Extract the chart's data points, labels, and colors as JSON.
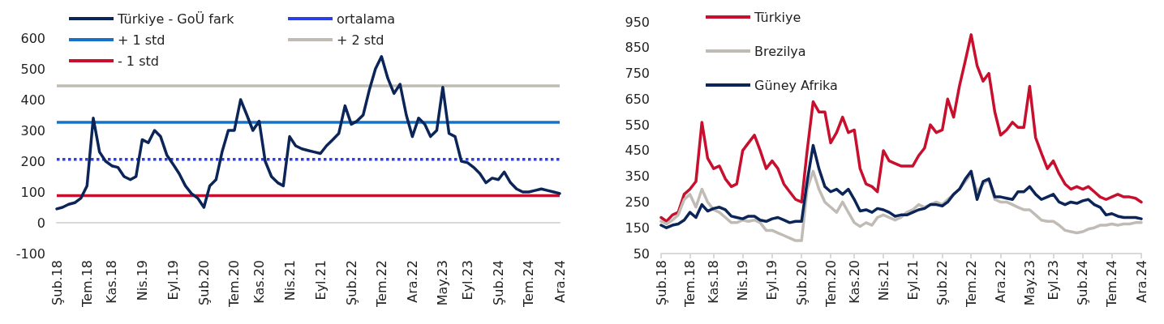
{
  "chart_data": [
    {
      "type": "line",
      "legend": "top",
      "grid": false,
      "ylim": [
        -100,
        600
      ],
      "yticks": [
        -100,
        0,
        100,
        200,
        300,
        400,
        500,
        600
      ],
      "xlim": [
        "2018-02",
        "2024-12"
      ],
      "xticks": [
        {
          "value": "2018-02",
          "label": "Şub.18"
        },
        {
          "value": "2018-07",
          "label": "Tem.18"
        },
        {
          "value": "2018-11",
          "label": "Kas.18"
        },
        {
          "value": "2019-04",
          "label": "Nis.19"
        },
        {
          "value": "2019-09",
          "label": "Eyl.19"
        },
        {
          "value": "2020-02",
          "label": "Şub.20"
        },
        {
          "value": "2020-07",
          "label": "Tem.20"
        },
        {
          "value": "2020-11",
          "label": "Kas.20"
        },
        {
          "value": "2021-04",
          "label": "Nis.21"
        },
        {
          "value": "2021-09",
          "label": "Eyl.21"
        },
        {
          "value": "2022-02",
          "label": "Şub.22"
        },
        {
          "value": "2022-07",
          "label": "Tem.22"
        },
        {
          "value": "2022-12",
          "label": "Ara.22"
        },
        {
          "value": "2023-05",
          "label": "May.23"
        },
        {
          "value": "2023-09",
          "label": "Eyl.23"
        },
        {
          "value": "2024-02",
          "label": "Şub.24"
        },
        {
          "value": "2024-07",
          "label": "Tem.24"
        },
        {
          "value": "2024-12",
          "label": "Ara.24"
        }
      ],
      "x": [
        "2018-02",
        "2018-03",
        "2018-04",
        "2018-05",
        "2018-06",
        "2018-07",
        "2018-08",
        "2018-09",
        "2018-10",
        "2018-11",
        "2018-12",
        "2019-01",
        "2019-02",
        "2019-03",
        "2019-04",
        "2019-05",
        "2019-06",
        "2019-07",
        "2019-08",
        "2019-09",
        "2019-10",
        "2019-11",
        "2019-12",
        "2020-01",
        "2020-02",
        "2020-03",
        "2020-04",
        "2020-05",
        "2020-06",
        "2020-07",
        "2020-08",
        "2020-09",
        "2020-10",
        "2020-11",
        "2020-12",
        "2021-01",
        "2021-02",
        "2021-03",
        "2021-04",
        "2021-05",
        "2021-06",
        "2021-07",
        "2021-08",
        "2021-09",
        "2021-10",
        "2021-11",
        "2021-12",
        "2022-01",
        "2022-02",
        "2022-03",
        "2022-04",
        "2022-05",
        "2022-06",
        "2022-07",
        "2022-08",
        "2022-09",
        "2022-10",
        "2022-11",
        "2022-12",
        "2023-01",
        "2023-02",
        "2023-03",
        "2023-04",
        "2023-05",
        "2023-06",
        "2023-07",
        "2023-08",
        "2023-09",
        "2023-10",
        "2023-11",
        "2023-12",
        "2024-01",
        "2024-02",
        "2024-03",
        "2024-04",
        "2024-05",
        "2024-06",
        "2024-07",
        "2024-08",
        "2024-09",
        "2024-10",
        "2024-11",
        "2024-12"
      ],
      "series": [
        {
          "name": "Türkiye - GoÜ fark",
          "color": "#0b2559",
          "values": [
            45,
            50,
            60,
            65,
            80,
            120,
            340,
            230,
            200,
            185,
            180,
            150,
            140,
            150,
            270,
            260,
            300,
            280,
            220,
            190,
            160,
            120,
            95,
            80,
            50,
            120,
            140,
            230,
            300,
            300,
            400,
            350,
            300,
            330,
            200,
            150,
            130,
            120,
            280,
            250,
            240,
            235,
            230,
            225,
            250,
            270,
            290,
            380,
            320,
            330,
            350,
            430,
            500,
            540,
            470,
            420,
            450,
            350,
            280,
            340,
            320,
            280,
            300,
            440,
            290,
            280,
            200,
            195,
            180,
            160,
            130,
            145,
            140,
            165,
            130,
            110,
            100,
            100,
            105,
            110,
            105,
            100,
            95
          ]
        }
      ],
      "ref_lines": [
        {
          "axis": "y",
          "value": 206,
          "label": "ortalama",
          "color": "#2c3ee6",
          "line_style": "dotted"
        },
        {
          "axis": "y",
          "value": 326,
          "label": "+ 1 std",
          "color": "#1672c8",
          "line_style": "solid"
        },
        {
          "axis": "y",
          "value": 445,
          "label": "+ 2 std",
          "color": "#c0bcb5",
          "line_style": "solid"
        },
        {
          "axis": "y",
          "value": 88,
          "label": "- 1 std",
          "color": "#c8102e",
          "line_style": "solid"
        }
      ]
    },
    {
      "type": "line",
      "legend": "top left",
      "grid": false,
      "ylim": [
        50,
        950
      ],
      "yticks": [
        50,
        150,
        250,
        350,
        450,
        550,
        650,
        750,
        850,
        950
      ],
      "xlim": [
        "2018-02",
        "2024-12"
      ],
      "xticks": [
        {
          "value": "2018-02",
          "label": "Şub.18"
        },
        {
          "value": "2018-07",
          "label": "Tem.18"
        },
        {
          "value": "2018-11",
          "label": "Kas.18"
        },
        {
          "value": "2019-04",
          "label": "Nis.19"
        },
        {
          "value": "2019-09",
          "label": "Eyl.19"
        },
        {
          "value": "2020-02",
          "label": "Şub.20"
        },
        {
          "value": "2020-07",
          "label": "Tem.20"
        },
        {
          "value": "2020-11",
          "label": "Kas.20"
        },
        {
          "value": "2021-04",
          "label": "Nis.21"
        },
        {
          "value": "2021-09",
          "label": "Eyl.21"
        },
        {
          "value": "2022-02",
          "label": "Şub.22"
        },
        {
          "value": "2022-07",
          "label": "Tem.22"
        },
        {
          "value": "2022-12",
          "label": "Ara.22"
        },
        {
          "value": "2023-05",
          "label": "May.23"
        },
        {
          "value": "2023-09",
          "label": "Eyl.23"
        },
        {
          "value": "2024-02",
          "label": "Şub.24"
        },
        {
          "value": "2024-07",
          "label": "Tem.24"
        },
        {
          "value": "2024-12",
          "label": "Ara.24"
        }
      ],
      "x": [
        "2018-02",
        "2018-03",
        "2018-04",
        "2018-05",
        "2018-06",
        "2018-07",
        "2018-08",
        "2018-09",
        "2018-10",
        "2018-11",
        "2018-12",
        "2019-01",
        "2019-02",
        "2019-03",
        "2019-04",
        "2019-05",
        "2019-06",
        "2019-07",
        "2019-08",
        "2019-09",
        "2019-10",
        "2019-11",
        "2019-12",
        "2020-01",
        "2020-02",
        "2020-03",
        "2020-04",
        "2020-05",
        "2020-06",
        "2020-07",
        "2020-08",
        "2020-09",
        "2020-10",
        "2020-11",
        "2020-12",
        "2021-01",
        "2021-02",
        "2021-03",
        "2021-04",
        "2021-05",
        "2021-06",
        "2021-07",
        "2021-08",
        "2021-09",
        "2021-10",
        "2021-11",
        "2021-12",
        "2022-01",
        "2022-02",
        "2022-03",
        "2022-04",
        "2022-05",
        "2022-06",
        "2022-07",
        "2022-08",
        "2022-09",
        "2022-10",
        "2022-11",
        "2022-12",
        "2023-01",
        "2023-02",
        "2023-03",
        "2023-04",
        "2023-05",
        "2023-06",
        "2023-07",
        "2023-08",
        "2023-09",
        "2023-10",
        "2023-11",
        "2023-12",
        "2024-01",
        "2024-02",
        "2024-03",
        "2024-04",
        "2024-05",
        "2024-06",
        "2024-07",
        "2024-08",
        "2024-09",
        "2024-10",
        "2024-11",
        "2024-12"
      ],
      "series": [
        {
          "name": "Türkiye",
          "color": "#c8102e",
          "values": [
            190,
            175,
            200,
            210,
            280,
            300,
            330,
            560,
            420,
            380,
            390,
            340,
            310,
            320,
            450,
            480,
            510,
            450,
            380,
            410,
            380,
            320,
            290,
            260,
            250,
            450,
            640,
            600,
            600,
            480,
            520,
            580,
            520,
            530,
            380,
            320,
            310,
            290,
            450,
            410,
            400,
            390,
            390,
            390,
            430,
            460,
            550,
            520,
            530,
            650,
            580,
            700,
            800,
            900,
            780,
            720,
            750,
            600,
            510,
            530,
            560,
            540,
            540,
            700,
            500,
            440,
            380,
            410,
            360,
            320,
            300,
            310,
            300,
            310,
            290,
            270,
            260,
            270,
            280,
            270,
            270,
            265,
            250
          ]
        },
        {
          "name": "Brezilya",
          "color": "#c0bcb5",
          "values": [
            175,
            165,
            180,
            200,
            260,
            280,
            230,
            300,
            250,
            220,
            210,
            190,
            170,
            170,
            180,
            175,
            180,
            170,
            140,
            140,
            130,
            120,
            110,
            100,
            100,
            300,
            370,
            300,
            250,
            230,
            210,
            250,
            210,
            170,
            155,
            170,
            160,
            190,
            200,
            190,
            180,
            190,
            210,
            220,
            240,
            230,
            240,
            250,
            240,
            260,
            280,
            300,
            330,
            360,
            290,
            320,
            340,
            260,
            250,
            250,
            240,
            230,
            220,
            220,
            200,
            180,
            175,
            175,
            160,
            140,
            135,
            130,
            135,
            145,
            150,
            160,
            160,
            165,
            160,
            165,
            165,
            170,
            170
          ]
        },
        {
          "name": "Güney Afrika",
          "color": "#0b2559",
          "values": [
            160,
            150,
            160,
            165,
            180,
            210,
            190,
            240,
            215,
            225,
            230,
            220,
            195,
            190,
            185,
            195,
            195,
            180,
            175,
            185,
            190,
            180,
            170,
            175,
            175,
            330,
            470,
            380,
            310,
            290,
            300,
            280,
            300,
            260,
            215,
            220,
            210,
            225,
            220,
            210,
            195,
            200,
            200,
            210,
            220,
            225,
            240,
            240,
            235,
            250,
            280,
            300,
            340,
            370,
            260,
            330,
            340,
            270,
            270,
            265,
            260,
            290,
            290,
            310,
            280,
            260,
            270,
            280,
            250,
            240,
            250,
            245,
            255,
            260,
            240,
            230,
            200,
            205,
            195,
            190,
            190,
            190,
            185
          ]
        }
      ]
    }
  ]
}
